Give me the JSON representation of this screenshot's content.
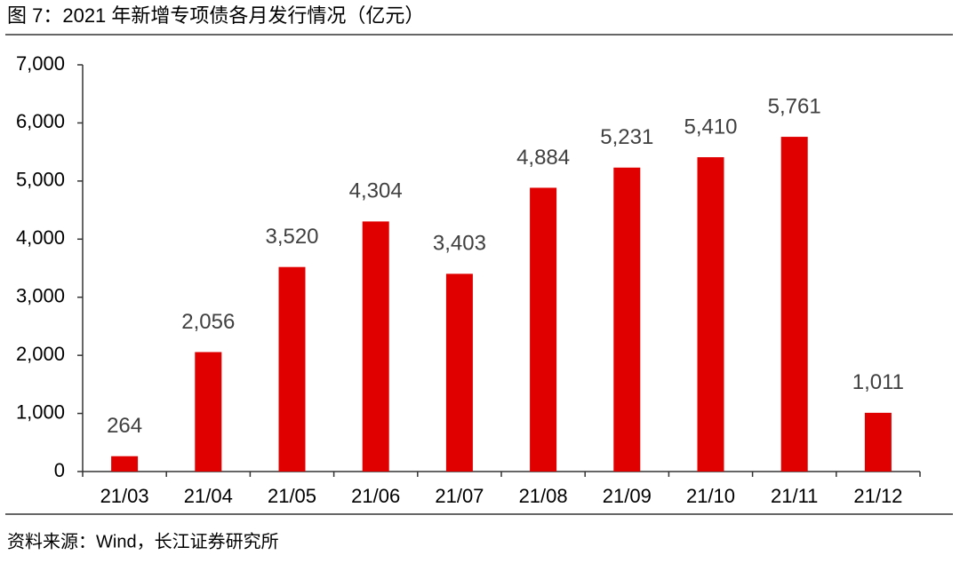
{
  "chart_data": {
    "type": "bar",
    "title": "图 7：2021 年新增专项债各月发行情况（亿元）",
    "source": "资料来源：Wind，长江证券研究所",
    "categories": [
      "21/03",
      "21/04",
      "21/05",
      "21/06",
      "21/07",
      "21/08",
      "21/09",
      "21/10",
      "21/11",
      "21/12"
    ],
    "values": [
      264,
      2056,
      3520,
      4304,
      3403,
      4884,
      5231,
      5410,
      5761,
      1011
    ],
    "value_labels": [
      "264",
      "2,056",
      "3,520",
      "4,304",
      "3,403",
      "4,884",
      "5,231",
      "5,410",
      "5,761",
      "1,011"
    ],
    "color": "#e00000",
    "ylim": [
      0,
      7000
    ],
    "yticks": [
      0,
      {
        "value": 1000,
        "label": "1,000"
      },
      {
        "value": 2000,
        "label": "2,000"
      },
      {
        "value": 3000,
        "label": "3,000"
      },
      {
        "value": 4000,
        "label": "4,000"
      },
      {
        "value": 5000,
        "label": "5,000"
      },
      {
        "value": 6000,
        "label": "6,000"
      },
      {
        "value": 7000,
        "label": "7,000"
      }
    ],
    "grid": false
  }
}
